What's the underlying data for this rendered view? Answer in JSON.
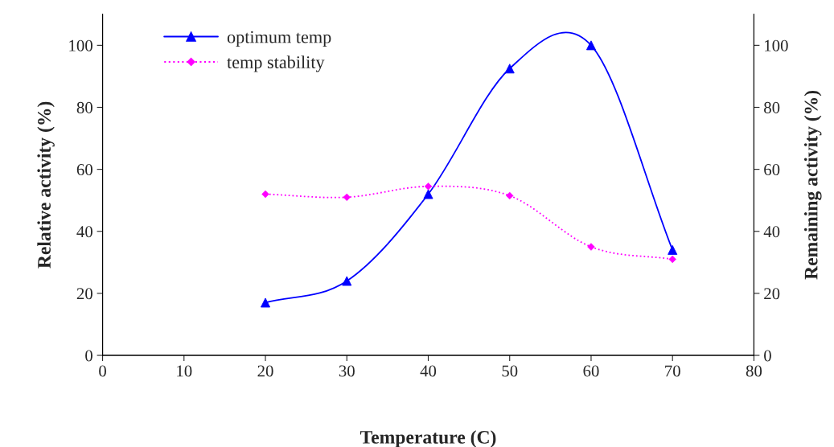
{
  "chart_data": {
    "type": "line",
    "xlabel": "Temperature (C)",
    "ylabel": "Relative activity (%)",
    "y2label": "Remaining activity (%)",
    "x": [
      20,
      30,
      40,
      50,
      60,
      70
    ],
    "series": [
      {
        "name": "optimum temp",
        "color": "#0000ff",
        "values": [
          17,
          24,
          52,
          92.5,
          100,
          34
        ],
        "marker": "triangle",
        "line_style": "solid"
      },
      {
        "name": "temp stability",
        "color": "#ff00ff",
        "values": [
          52,
          51,
          54.5,
          51.5,
          35,
          31
        ],
        "marker": "diamond",
        "line_style": "dotted",
        "axis": "y2"
      }
    ],
    "xlim": [
      0,
      80
    ],
    "xticks": [
      0,
      10,
      20,
      30,
      40,
      50,
      60,
      70,
      80
    ],
    "ylim": [
      0,
      110
    ],
    "yticks": [
      0,
      20,
      40,
      60,
      80,
      100
    ],
    "y2lim": [
      0,
      110
    ],
    "y2ticks": [
      0,
      20,
      40,
      60,
      80,
      100
    ],
    "grid": false,
    "legend": "top left"
  }
}
